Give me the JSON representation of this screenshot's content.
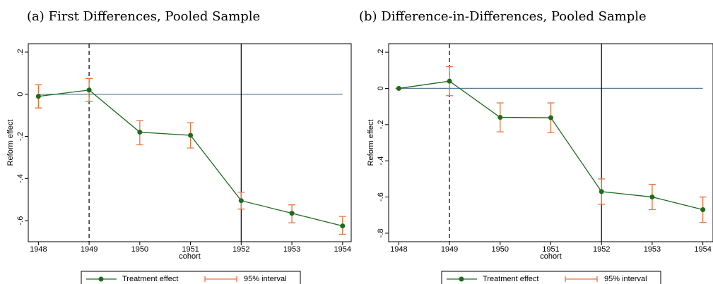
{
  "chart_data": [
    {
      "type": "line",
      "title": "(a) First Differences, Pooled Sample",
      "xlabel": "cohort",
      "ylabel": "Reform effect",
      "x": [
        1948,
        1949,
        1950,
        1951,
        1952,
        1953,
        1954
      ],
      "xlim": [
        1947.8,
        1954.17
      ],
      "xticks": [
        1948,
        1949,
        1950,
        1951,
        1952,
        1953,
        1954
      ],
      "ylim": [
        -0.7,
        0.24
      ],
      "yticks": [
        {
          "value": 0.2,
          "label": ".2"
        },
        0,
        {
          "value": -0.2,
          "label": "-.2"
        },
        {
          "value": -0.4,
          "label": "-.4"
        },
        {
          "value": -0.6,
          "label": "-.6"
        }
      ],
      "reference_y": 0,
      "dashed_x": 1949,
      "solid_x": 1952,
      "series": [
        {
          "name": "Treatment effect",
          "color": "#1e6b1e",
          "values": [
            -0.01,
            0.02,
            -0.18,
            -0.195,
            -0.505,
            -0.565,
            -0.625
          ]
        },
        {
          "name": "95% interval",
          "color": "#e8743b",
          "lower": [
            -0.065,
            -0.035,
            -0.24,
            -0.255,
            -0.545,
            -0.61,
            -0.665
          ],
          "upper": [
            0.045,
            0.075,
            -0.125,
            -0.135,
            -0.465,
            -0.525,
            -0.58
          ]
        }
      ]
    },
    {
      "type": "line",
      "title": "(b) Difference-in-Differences, Pooled Sample",
      "xlabel": "cohort",
      "ylabel": "Reform effect",
      "x": [
        1948,
        1949,
        1950,
        1951,
        1952,
        1953,
        1954
      ],
      "xlim": [
        1947.8,
        1954.2
      ],
      "xticks": [
        1948,
        1949,
        1950,
        1951,
        1952,
        1953,
        1954
      ],
      "ylim": [
        -0.847,
        0.247
      ],
      "yticks": [
        {
          "value": 0.2,
          "label": ".2"
        },
        0,
        {
          "value": -0.2,
          "label": "-.2"
        },
        {
          "value": -0.4,
          "label": "-.4"
        },
        {
          "value": -0.6,
          "label": "-.6"
        },
        {
          "value": -0.8,
          "label": "-.8"
        }
      ],
      "reference_y": 0,
      "dashed_x": 1949,
      "solid_x": 1952,
      "series": [
        {
          "name": "Treatment effect",
          "color": "#1e6b1e",
          "values": [
            0,
            0.04,
            -0.16,
            -0.162,
            -0.57,
            -0.6,
            -0.67
          ]
        },
        {
          "name": "95% interval",
          "color": "#e8743b",
          "lower": [
            0,
            -0.04,
            -0.24,
            -0.245,
            -0.64,
            -0.67,
            -0.74
          ],
          "upper": [
            0,
            0.12,
            -0.08,
            -0.08,
            -0.5,
            -0.53,
            -0.6
          ]
        }
      ]
    }
  ]
}
